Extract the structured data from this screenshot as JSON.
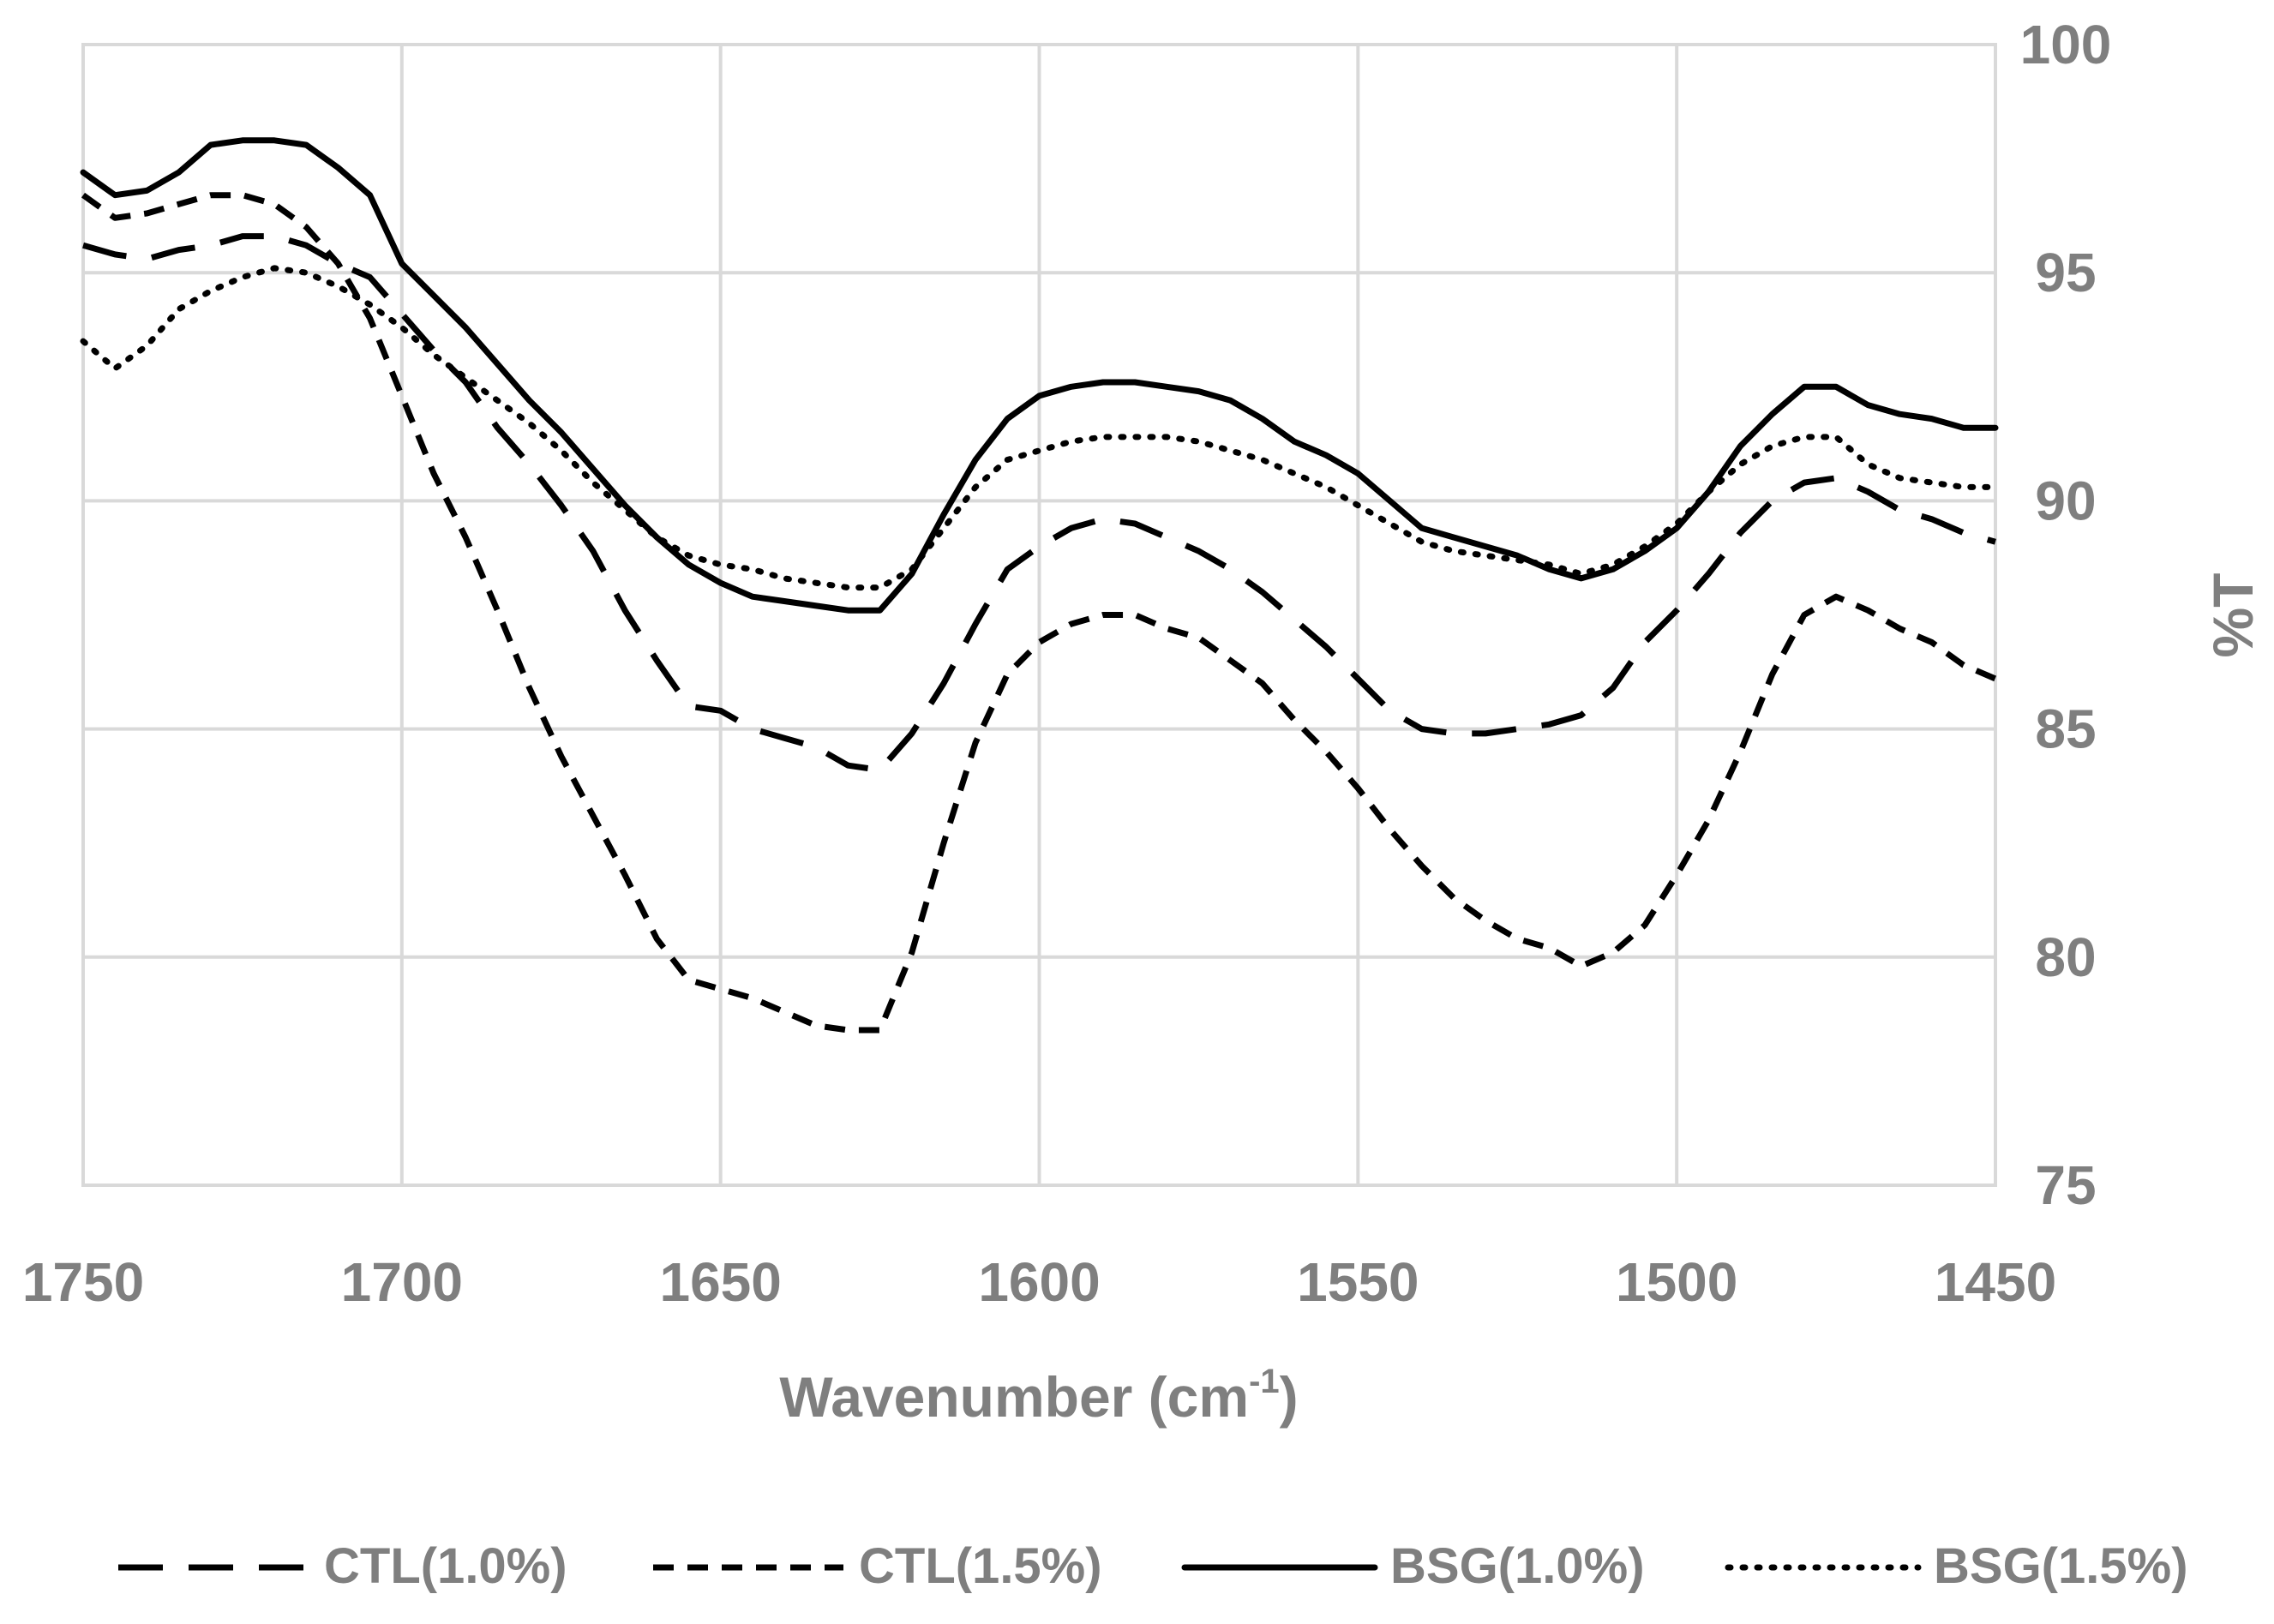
{
  "chart_data": {
    "type": "line",
    "xlabel": "Wavenumber (cm",
    "xlabel_sup": "-1",
    "xlabel_close": ")",
    "ylabel": "%T",
    "xlim": [
      1750,
      1450
    ],
    "ylim": [
      75,
      100
    ],
    "x_ticks": [
      "1750",
      "1700",
      "1650",
      "1600",
      "1550",
      "1500",
      "1450"
    ],
    "y_ticks": [
      "100",
      "95",
      "90",
      "85",
      "80",
      "75"
    ],
    "y_axis_side": "right",
    "grid": true,
    "legend_position": "bottom",
    "series": [
      {
        "name": "CTL(1.0%)",
        "style": "long-dash",
        "x": [
          1750,
          1745,
          1740,
          1735,
          1730,
          1725,
          1720,
          1715,
          1710,
          1705,
          1700,
          1695,
          1690,
          1685,
          1680,
          1675,
          1670,
          1665,
          1660,
          1655,
          1650,
          1645,
          1640,
          1635,
          1630,
          1625,
          1620,
          1615,
          1610,
          1605,
          1600,
          1595,
          1590,
          1585,
          1580,
          1575,
          1570,
          1565,
          1560,
          1555,
          1550,
          1545,
          1540,
          1535,
          1530,
          1525,
          1520,
          1515,
          1510,
          1505,
          1500,
          1495,
          1490,
          1485,
          1480,
          1475,
          1470,
          1465,
          1460,
          1455,
          1450
        ],
        "y": [
          95.6,
          95.4,
          95.3,
          95.5,
          95.6,
          95.8,
          95.8,
          95.6,
          95.2,
          94.9,
          94.1,
          93.3,
          92.6,
          91.6,
          90.8,
          89.9,
          88.9,
          87.6,
          86.5,
          85.5,
          85.4,
          85.0,
          84.8,
          84.6,
          84.2,
          84.1,
          84.9,
          86.0,
          87.3,
          88.5,
          89.0,
          89.4,
          89.6,
          89.5,
          89.2,
          88.9,
          88.5,
          88.0,
          87.4,
          86.8,
          86.1,
          85.4,
          85.0,
          84.9,
          84.9,
          85.0,
          85.1,
          85.3,
          85.9,
          86.9,
          87.6,
          88.4,
          89.3,
          90.0,
          90.4,
          90.5,
          90.2,
          89.8,
          89.6,
          89.3,
          89.1
        ]
      },
      {
        "name": "CTL(1.5%)",
        "style": "short-dash",
        "x": [
          1750,
          1745,
          1740,
          1735,
          1730,
          1725,
          1720,
          1715,
          1710,
          1705,
          1700,
          1695,
          1690,
          1685,
          1680,
          1675,
          1670,
          1665,
          1660,
          1655,
          1650,
          1645,
          1640,
          1635,
          1630,
          1625,
          1620,
          1615,
          1610,
          1605,
          1600,
          1595,
          1590,
          1585,
          1580,
          1575,
          1570,
          1565,
          1560,
          1555,
          1550,
          1545,
          1540,
          1535,
          1530,
          1525,
          1520,
          1515,
          1510,
          1505,
          1500,
          1495,
          1490,
          1485,
          1480,
          1475,
          1470,
          1465,
          1460,
          1455,
          1450
        ],
        "y": [
          96.7,
          96.2,
          96.3,
          96.5,
          96.7,
          96.7,
          96.5,
          96.0,
          95.2,
          94.0,
          92.3,
          90.6,
          89.2,
          87.6,
          85.9,
          84.4,
          83.1,
          81.8,
          80.4,
          79.5,
          79.3,
          79.1,
          78.8,
          78.5,
          78.4,
          78.4,
          80.1,
          82.5,
          84.7,
          86.2,
          86.9,
          87.3,
          87.5,
          87.5,
          87.2,
          87.0,
          86.5,
          86.0,
          85.2,
          84.5,
          83.7,
          82.8,
          82.0,
          81.3,
          80.8,
          80.4,
          80.2,
          79.8,
          80.1,
          80.7,
          81.8,
          83.0,
          84.5,
          86.2,
          87.5,
          87.9,
          87.6,
          87.2,
          86.9,
          86.4,
          86.1
        ]
      },
      {
        "name": "BSG(1.0%)",
        "style": "solid",
        "x": [
          1750,
          1745,
          1740,
          1735,
          1730,
          1725,
          1720,
          1715,
          1710,
          1705,
          1700,
          1695,
          1690,
          1685,
          1680,
          1675,
          1670,
          1665,
          1660,
          1655,
          1650,
          1645,
          1640,
          1635,
          1630,
          1625,
          1620,
          1615,
          1610,
          1605,
          1600,
          1595,
          1590,
          1585,
          1580,
          1575,
          1570,
          1565,
          1560,
          1555,
          1550,
          1545,
          1540,
          1535,
          1530,
          1525,
          1520,
          1515,
          1510,
          1505,
          1500,
          1495,
          1490,
          1485,
          1480,
          1475,
          1470,
          1465,
          1460,
          1455,
          1450
        ],
        "y": [
          97.2,
          96.7,
          96.8,
          97.2,
          97.8,
          97.9,
          97.9,
          97.8,
          97.3,
          96.7,
          95.2,
          94.5,
          93.8,
          93.0,
          92.2,
          91.5,
          90.7,
          89.9,
          89.2,
          88.6,
          88.2,
          87.9,
          87.8,
          87.7,
          87.6,
          87.6,
          88.4,
          89.7,
          90.9,
          91.8,
          92.3,
          92.5,
          92.6,
          92.6,
          92.5,
          92.4,
          92.2,
          91.8,
          91.3,
          91.0,
          90.6,
          90.0,
          89.4,
          89.2,
          89.0,
          88.8,
          88.5,
          88.3,
          88.5,
          88.9,
          89.4,
          90.2,
          91.2,
          91.9,
          92.5,
          92.5,
          92.1,
          91.9,
          91.8,
          91.6,
          91.6
        ]
      },
      {
        "name": "BSG(1.5%)",
        "style": "dotted",
        "x": [
          1750,
          1745,
          1740,
          1735,
          1730,
          1725,
          1720,
          1715,
          1710,
          1705,
          1700,
          1695,
          1690,
          1685,
          1680,
          1675,
          1670,
          1665,
          1660,
          1655,
          1650,
          1645,
          1640,
          1635,
          1630,
          1625,
          1620,
          1615,
          1610,
          1605,
          1600,
          1595,
          1590,
          1585,
          1580,
          1575,
          1570,
          1565,
          1560,
          1555,
          1550,
          1545,
          1540,
          1535,
          1530,
          1525,
          1520,
          1515,
          1510,
          1505,
          1500,
          1495,
          1490,
          1485,
          1480,
          1475,
          1470,
          1465,
          1460,
          1455,
          1450
        ],
        "y": [
          93.5,
          92.9,
          93.4,
          94.2,
          94.6,
          94.9,
          95.1,
          95.0,
          94.7,
          94.3,
          93.8,
          93.2,
          92.7,
          92.2,
          91.7,
          91.1,
          90.4,
          89.8,
          89.2,
          88.8,
          88.6,
          88.5,
          88.3,
          88.2,
          88.1,
          88.1,
          88.5,
          89.4,
          90.3,
          90.9,
          91.1,
          91.3,
          91.4,
          91.4,
          91.4,
          91.3,
          91.1,
          90.9,
          90.6,
          90.3,
          89.9,
          89.5,
          89.1,
          88.9,
          88.8,
          88.7,
          88.6,
          88.4,
          88.6,
          89.0,
          89.5,
          90.2,
          90.8,
          91.2,
          91.4,
          91.4,
          90.8,
          90.5,
          90.4,
          90.3,
          90.3
        ]
      }
    ]
  }
}
